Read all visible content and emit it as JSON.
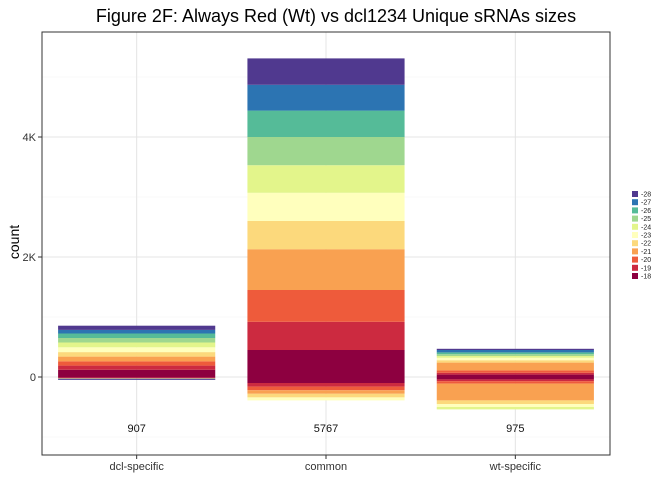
{
  "chart_data": {
    "type": "bar",
    "title": "Figure 2F: Always Red (Wt) vs dcl1234 Unique sRNAs sizes",
    "xlabel": "",
    "ylabel": "count",
    "ylim": [
      -1300,
      5750
    ],
    "y_ticks": [
      0,
      2000,
      4000
    ],
    "y_tick_labels": [
      "0",
      "2K",
      "4K"
    ],
    "categories": [
      "dcl-specific",
      "common",
      "wt-specific"
    ],
    "annotations": [
      {
        "category": "dcl-specific",
        "label": "907",
        "y": -850
      },
      {
        "category": "common",
        "label": "5767",
        "y": -850
      },
      {
        "category": "wt-specific",
        "label": "975",
        "y": -850
      }
    ],
    "legend": {
      "position": "right",
      "order": [
        "-28",
        "-27",
        "-26",
        "-25",
        "-24",
        "-23",
        "-22",
        "-21",
        "-20",
        "-19",
        "-18"
      ]
    },
    "colors": {
      "-28": "#50398f",
      "-27": "#2c74b2",
      "-26": "#55bb98",
      "-25": "#9fd78f",
      "-24": "#e3f58b",
      "-23": "#ffffbd",
      "-22": "#fcd97c",
      "-21": "#f9a151",
      "-20": "#ee5b3b",
      "-19": "#cc2a40",
      "-18": "#8d0040"
    },
    "series": [
      {
        "category": "dcl-specific",
        "positive": [
          {
            "name": "-18",
            "value": 120
          },
          {
            "name": "-19",
            "value": 70
          },
          {
            "name": "-20",
            "value": 70
          },
          {
            "name": "-21",
            "value": 80
          },
          {
            "name": "-22",
            "value": 75
          },
          {
            "name": "-23",
            "value": 80
          },
          {
            "name": "-24",
            "value": 80
          },
          {
            "name": "-25",
            "value": 75
          },
          {
            "name": "-26",
            "value": 75
          },
          {
            "name": "-27",
            "value": 60
          },
          {
            "name": "-28",
            "value": 70
          }
        ],
        "negative": [
          {
            "name": "-18",
            "value": 10
          },
          {
            "name": "-19",
            "value": 8
          },
          {
            "name": "-21",
            "value": 10
          },
          {
            "name": "-27",
            "value": 10
          },
          {
            "name": "-28",
            "value": 12
          }
        ]
      },
      {
        "category": "common",
        "positive": [
          {
            "name": "-18",
            "value": 450
          },
          {
            "name": "-19",
            "value": 470
          },
          {
            "name": "-20",
            "value": 530
          },
          {
            "name": "-21",
            "value": 680
          },
          {
            "name": "-22",
            "value": 470
          },
          {
            "name": "-23",
            "value": 470
          },
          {
            "name": "-24",
            "value": 460
          },
          {
            "name": "-25",
            "value": 470
          },
          {
            "name": "-26",
            "value": 440
          },
          {
            "name": "-27",
            "value": 430
          },
          {
            "name": "-28",
            "value": 440
          }
        ],
        "negative": [
          {
            "name": "-18",
            "value": 100
          },
          {
            "name": "-19",
            "value": 60
          },
          {
            "name": "-20",
            "value": 60
          },
          {
            "name": "-21",
            "value": 60
          },
          {
            "name": "-22",
            "value": 60
          },
          {
            "name": "-23",
            "value": 50
          }
        ]
      },
      {
        "category": "wt-specific",
        "positive": [
          {
            "name": "-18",
            "value": 40
          },
          {
            "name": "-19",
            "value": 30
          },
          {
            "name": "-20",
            "value": 40
          },
          {
            "name": "-21",
            "value": 130
          },
          {
            "name": "-22",
            "value": 40
          },
          {
            "name": "-23",
            "value": 40
          },
          {
            "name": "-24",
            "value": 30
          },
          {
            "name": "-25",
            "value": 30
          },
          {
            "name": "-26",
            "value": 30
          },
          {
            "name": "-27",
            "value": 40
          },
          {
            "name": "-28",
            "value": 20
          }
        ],
        "negative": [
          {
            "name": "-18",
            "value": 40
          },
          {
            "name": "-19",
            "value": 30
          },
          {
            "name": "-20",
            "value": 40
          },
          {
            "name": "-21",
            "value": 280
          },
          {
            "name": "-22",
            "value": 60
          },
          {
            "name": "-23",
            "value": 50
          },
          {
            "name": "-24",
            "value": 40
          }
        ]
      }
    ]
  }
}
